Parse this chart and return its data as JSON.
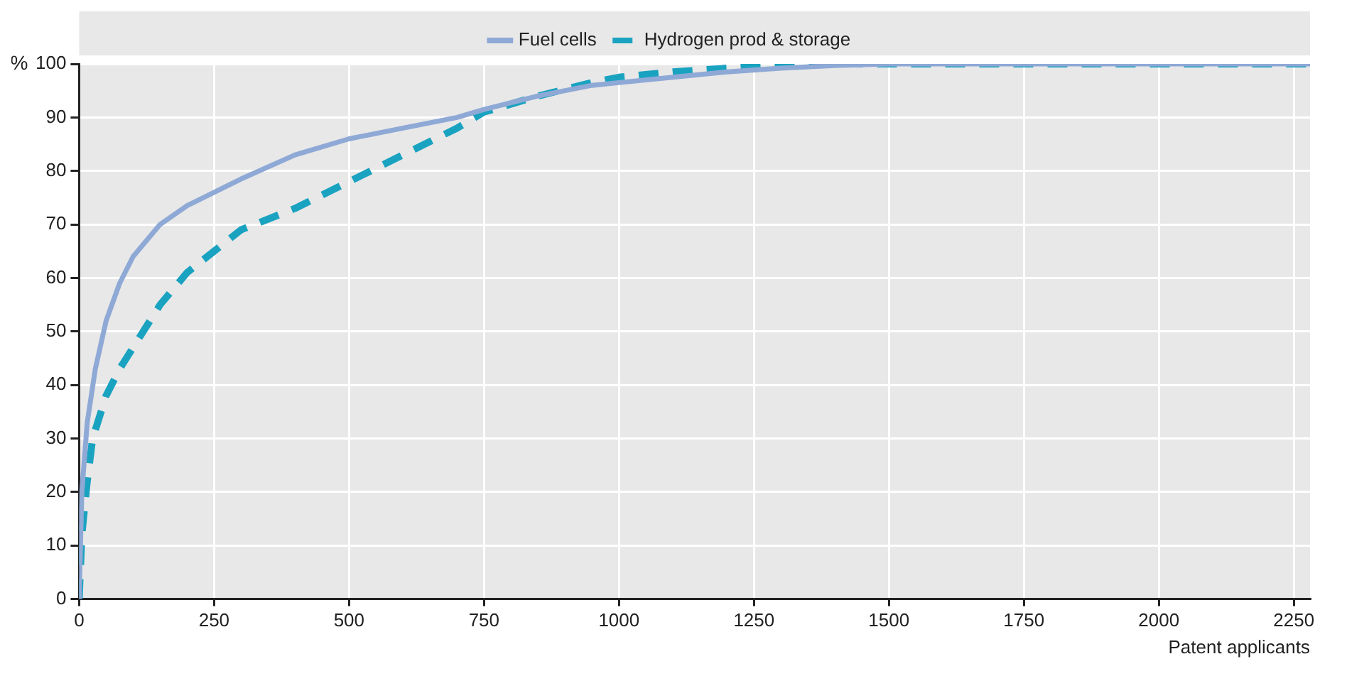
{
  "chart_data": {
    "type": "line",
    "xlabel": "Patent applicants",
    "ylabel": "%",
    "xlim": [
      0,
      2280
    ],
    "xticks": [
      0,
      250,
      500,
      750,
      1000,
      1250,
      1500,
      1750,
      2000,
      2250
    ],
    "ylim": [
      0,
      100
    ],
    "yticks": [
      0,
      10,
      20,
      30,
      40,
      50,
      60,
      70,
      80,
      90,
      100
    ],
    "grid": true,
    "legend": "top",
    "marker": "none",
    "series": [
      {
        "name": "Fuel cells",
        "color": "#8fa9d6",
        "line_style": "solid",
        "x": [
          0,
          5,
          15,
          30,
          50,
          75,
          100,
          150,
          200,
          250,
          300,
          400,
          500,
          600,
          700,
          750,
          850,
          950,
          1000,
          1100,
          1200,
          1300,
          1400,
          1500,
          2280
        ],
        "values": [
          0,
          20,
          33,
          43,
          52,
          59,
          64,
          70,
          73.5,
          76,
          78.5,
          83,
          86,
          88,
          90,
          91.5,
          94,
          96,
          96.5,
          97.5,
          98.5,
          99.2,
          99.7,
          100,
          100
        ]
      },
      {
        "name": "Hydrogen prod & storage",
        "color": "#1aa3c0",
        "line_style": "dashed",
        "x": [
          0,
          5,
          15,
          25,
          50,
          75,
          100,
          150,
          200,
          250,
          300,
          400,
          500,
          600,
          700,
          750,
          850,
          950,
          1000,
          1100,
          1200,
          1300,
          1400,
          2280
        ],
        "values": [
          0,
          12,
          22,
          30,
          38,
          43,
          47,
          55,
          61,
          65,
          69,
          73,
          78,
          83,
          88,
          91,
          94,
          96.5,
          97.5,
          98.5,
          99.2,
          99.7,
          100,
          100
        ]
      }
    ]
  }
}
